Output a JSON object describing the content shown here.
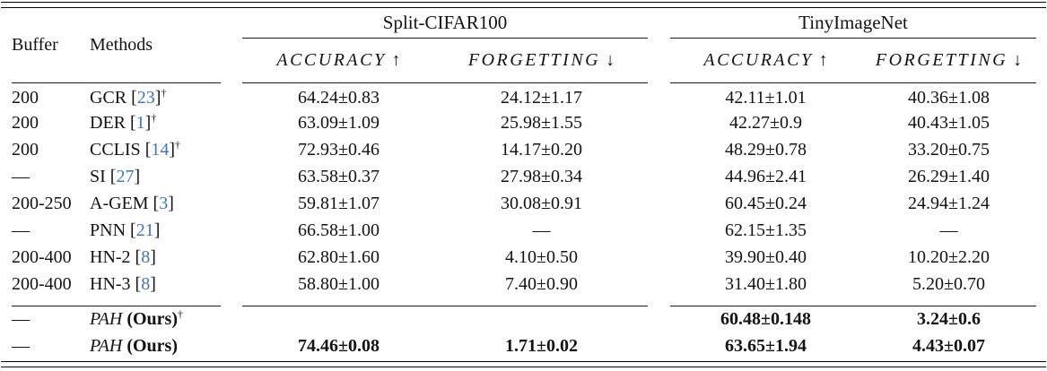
{
  "colors": {
    "citation": "#4277b5",
    "text": "#131313"
  },
  "citation_brackets": [
    "[",
    "]"
  ],
  "header": {
    "buffer": "Buffer",
    "methods": "Methods",
    "groups": [
      {
        "label": "Split-CIFAR100"
      },
      {
        "label": "TinyImageNet"
      }
    ],
    "metrics": [
      {
        "label": "ACCURACY",
        "arrow": "↑"
      },
      {
        "label": "FORGETTING",
        "arrow": "↓"
      },
      {
        "label": "ACCURACY",
        "arrow": "↑"
      },
      {
        "label": "FORGETTING",
        "arrow": "↓"
      }
    ]
  },
  "rows": [
    {
      "buffer": "200",
      "method": {
        "name": "GCR",
        "cite": "23",
        "dagger": "†"
      },
      "values": [
        "64.24±0.83",
        "24.12±1.17",
        "42.11±1.01",
        "40.36±1.08"
      ],
      "bold": false
    },
    {
      "buffer": "200",
      "method": {
        "name": "DER",
        "cite": "1",
        "dagger": "†"
      },
      "values": [
        "63.09±1.09",
        "25.98±1.55",
        "42.27±0.9",
        "40.43±1.05"
      ],
      "bold": false
    },
    {
      "buffer": "200",
      "method": {
        "name": "CCLIS",
        "cite": "14",
        "dagger": "†"
      },
      "values": [
        "72.93±0.46",
        "14.17±0.20",
        "48.29±0.78",
        "33.20±0.75"
      ],
      "bold": false
    },
    {
      "buffer": "—",
      "method": {
        "name": "SI",
        "cite": "27",
        "dagger": ""
      },
      "values": [
        "63.58±0.37",
        "27.98±0.34",
        "44.96±2.41",
        "26.29±1.40"
      ],
      "bold": false
    },
    {
      "buffer": "200-250",
      "method": {
        "name": "A-GEM",
        "cite": "3",
        "dagger": ""
      },
      "values": [
        "59.81±1.07",
        "30.08±0.91",
        "60.45±0.24",
        "24.94±1.24"
      ],
      "bold": false
    },
    {
      "buffer": "—",
      "method": {
        "name": "PNN",
        "cite": "21",
        "dagger": ""
      },
      "values": [
        "66.58±1.00",
        "—",
        "62.15±1.35",
        "—"
      ],
      "bold": false
    },
    {
      "buffer": "200-400",
      "method": {
        "name": "HN-2",
        "cite": "8",
        "dagger": ""
      },
      "values": [
        "62.80±1.60",
        "4.10±0.50",
        "39.90±0.40",
        "10.20±2.20"
      ],
      "bold": false
    },
    {
      "buffer": "200-400",
      "method": {
        "name": "HN-3",
        "cite": "8",
        "dagger": ""
      },
      "values": [
        "58.80±1.00",
        "7.40±0.90",
        "31.40±1.80",
        "5.20±0.70"
      ],
      "bold": false
    }
  ],
  "ours_rows": [
    {
      "buffer": "—",
      "method": {
        "name": "PAH",
        "suffix": "(Ours)",
        "dagger": "†"
      },
      "values": [
        "",
        "",
        "60.48±0.148",
        "3.24±0.6"
      ],
      "bold": true
    },
    {
      "buffer": "—",
      "method": {
        "name": "PAH",
        "suffix": "(Ours)",
        "dagger": ""
      },
      "values": [
        "74.46±0.08",
        "1.71±0.02",
        "63.65±1.94",
        "4.43±0.07"
      ],
      "bold": true
    }
  ]
}
